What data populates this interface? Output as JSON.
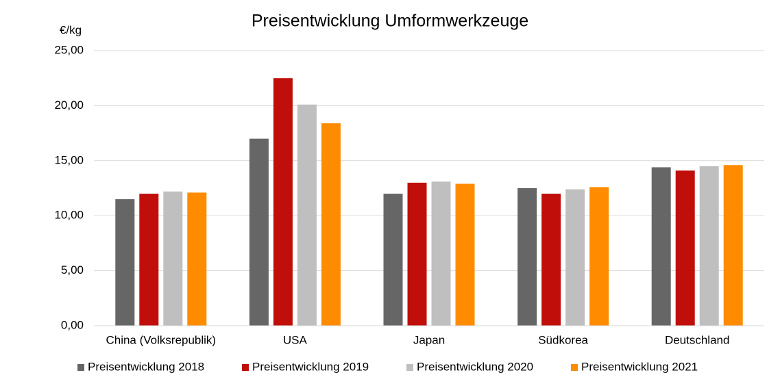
{
  "chart_data": {
    "type": "bar",
    "title": "Preisentwicklung Umformwerkzeuge",
    "y_axis_label": "€/kg",
    "categories": [
      "China (Volksrepublik)",
      "USA",
      "Japan",
      "Südkorea",
      "Deutschland"
    ],
    "series": [
      {
        "name": "Preisentwicklung 2018",
        "color": "#666666",
        "values": [
          11.5,
          17.0,
          12.0,
          12.5,
          14.4
        ]
      },
      {
        "name": "Preisentwicklung 2019",
        "color": "#c00f0a",
        "values": [
          12.0,
          22.5,
          13.0,
          12.0,
          14.1
        ]
      },
      {
        "name": "Preisentwicklung 2020",
        "color": "#bfbfbf",
        "values": [
          12.2,
          20.1,
          13.1,
          12.4,
          14.5
        ]
      },
      {
        "name": "Preisentwicklung 2021",
        "color": "#ff8c00",
        "values": [
          12.1,
          18.4,
          12.9,
          12.6,
          14.6
        ]
      }
    ],
    "ylim": [
      0,
      25
    ],
    "yticks": [
      {
        "value": 0,
        "label": "0,00"
      },
      {
        "value": 5,
        "label": "5,00"
      },
      {
        "value": 10,
        "label": "10,00"
      },
      {
        "value": 15,
        "label": "15,00"
      },
      {
        "value": 20,
        "label": "20,00"
      },
      {
        "value": 25,
        "label": "25,00"
      }
    ],
    "grid": true,
    "legend": "bottom"
  }
}
